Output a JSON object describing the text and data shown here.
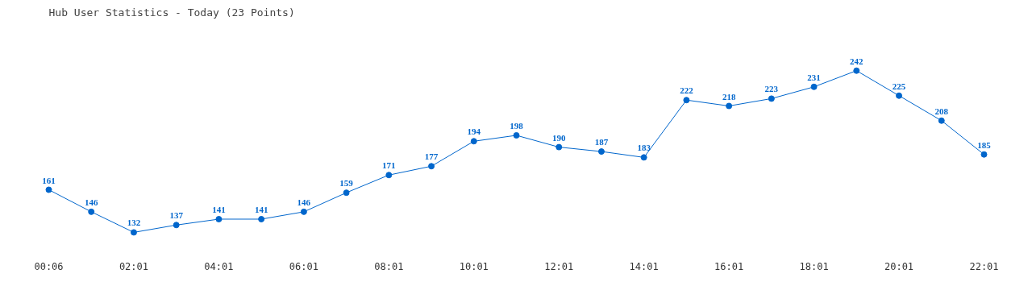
{
  "chart_data": {
    "type": "line",
    "title": "Hub User Statistics - Today (23 Points)",
    "categories": [
      "00:06",
      null,
      "02:01",
      null,
      "04:01",
      null,
      "06:01",
      null,
      "08:01",
      null,
      "10:01",
      null,
      "12:01",
      null,
      "14:01",
      null,
      "16:01",
      null,
      "18:01",
      null,
      "20:01",
      null,
      "22:01"
    ],
    "series": [
      {
        "color": "#0066cc",
        "values": [
          161,
          146,
          132,
          137,
          141,
          141,
          146,
          159,
          171,
          177,
          194,
          198,
          190,
          187,
          183,
          222,
          218,
          223,
          231,
          242,
          225,
          208,
          185
        ]
      }
    ],
    "data_labels": true,
    "marker": "circle",
    "line_style": "solid"
  }
}
